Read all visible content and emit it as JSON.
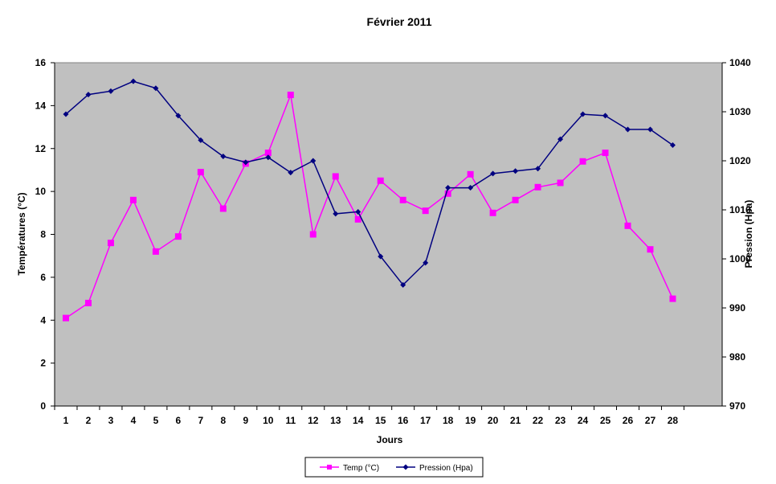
{
  "chart_data": {
    "type": "line",
    "title": "Février 2011",
    "xlabel": "Jours",
    "ylabel_left": "Températures (°C)",
    "ylabel_right": "Pression (Hpa)",
    "x": [
      1,
      2,
      3,
      4,
      5,
      6,
      7,
      8,
      9,
      10,
      11,
      12,
      13,
      14,
      15,
      16,
      17,
      18,
      19,
      20,
      21,
      22,
      23,
      24,
      25,
      26,
      27,
      28
    ],
    "ylim_left": [
      0,
      16
    ],
    "yticks_left": [
      0,
      2,
      4,
      6,
      8,
      10,
      12,
      14,
      16
    ],
    "ylim_right": [
      970,
      1040
    ],
    "yticks_right": [
      970,
      980,
      990,
      1000,
      1010,
      1020,
      1030,
      1040
    ],
    "grid": false,
    "plot_background": "#c0c0c0",
    "legend_position": "bottom-center",
    "series": [
      {
        "name": "Temp (°C)",
        "axis": "left",
        "color": "#ff00ff",
        "marker": "square",
        "values": [
          4.1,
          4.8,
          7.6,
          9.6,
          7.2,
          7.9,
          10.9,
          9.2,
          11.3,
          11.8,
          14.5,
          8.0,
          10.7,
          8.7,
          10.5,
          9.6,
          9.1,
          9.9,
          10.8,
          9.0,
          9.6,
          10.2,
          10.4,
          11.4,
          11.8,
          8.4,
          7.3,
          5.0
        ]
      },
      {
        "name": "Pression (Hpa)",
        "axis": "right",
        "color": "#000080",
        "marker": "diamond",
        "values": [
          1029.5,
          1033.5,
          1034.2,
          1036.2,
          1034.8,
          1029.2,
          1024.2,
          1020.9,
          1019.7,
          1020.7,
          1017.6,
          1020.0,
          1009.2,
          1009.6,
          1000.5,
          994.7,
          999.2,
          1014.5,
          1014.5,
          1017.4,
          1017.9,
          1018.4,
          1024.4,
          1029.5,
          1029.2,
          1026.4,
          1026.4,
          1023.2
        ]
      }
    ]
  }
}
